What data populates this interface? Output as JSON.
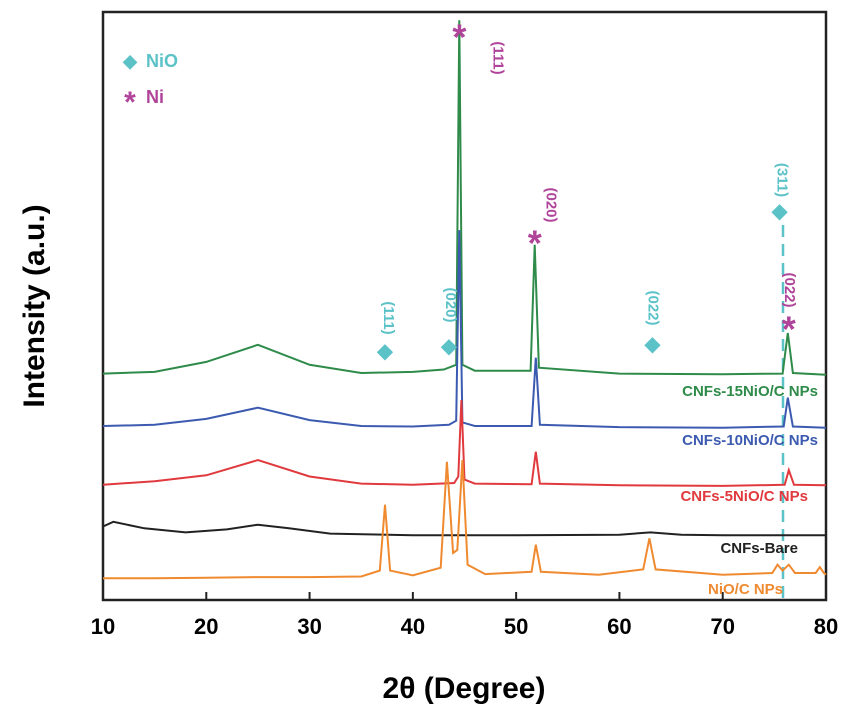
{
  "chart_data": {
    "type": "line",
    "xlabel": "2θ (Degree)",
    "ylabel": "Intensity (a.u.)",
    "xlim": [
      10,
      80
    ],
    "xticks": [
      10,
      20,
      30,
      40,
      50,
      60,
      70,
      80
    ],
    "ylim": [
      0,
      100
    ],
    "grid": false,
    "series": [
      {
        "name": "CNFs-15NiO/C NPs",
        "color": "#2e8b4a",
        "x": [
          10,
          15,
          20,
          25,
          30,
          35,
          40,
          43,
          44.2,
          44.5,
          44.8,
          46,
          51.4,
          51.8,
          52.2,
          60,
          70,
          75.8,
          76.3,
          76.8,
          80
        ],
        "values": [
          38.5,
          38.8,
          40.5,
          43.4,
          40,
          38.6,
          38.8,
          39.2,
          40,
          98.6,
          40,
          39,
          39,
          60.4,
          39.5,
          38.5,
          38.4,
          38.5,
          45.4,
          38.6,
          38.3
        ]
      },
      {
        "name": "CNFs-10NiO/C NPs",
        "color": "#3c5bb0",
        "x": [
          10,
          15,
          20,
          25,
          30,
          35,
          40,
          43.5,
          44.2,
          44.5,
          44.8,
          46,
          51.5,
          51.9,
          52.3,
          60,
          70,
          75.9,
          76.3,
          76.8,
          80
        ],
        "values": [
          29.6,
          29.8,
          30.8,
          32.7,
          30.6,
          29.6,
          29.5,
          29.8,
          30.5,
          62.9,
          30.2,
          29.6,
          29.6,
          41.2,
          29.8,
          29.4,
          29.3,
          29.5,
          34.4,
          29.5,
          29.3
        ]
      },
      {
        "name": "CNFs-5NiO/C NPs",
        "color": "#e03a3e",
        "x": [
          10,
          15,
          20,
          25,
          30,
          35,
          40,
          44,
          44.4,
          44.7,
          45,
          46,
          51.5,
          51.9,
          52.3,
          60,
          70,
          76,
          76.4,
          76.9,
          80
        ],
        "values": [
          19.6,
          20.2,
          21.2,
          23.8,
          21,
          19.8,
          19.6,
          19.9,
          21,
          34,
          20.5,
          19.8,
          19.7,
          25.2,
          19.8,
          19.5,
          19.4,
          19.6,
          22.1,
          19.6,
          19.5
        ]
      },
      {
        "name": "CNFs-Bare",
        "color": "#222222",
        "x": [
          10,
          11,
          14,
          18,
          22,
          25,
          28,
          32,
          40,
          50,
          60,
          63,
          66,
          70,
          80
        ],
        "values": [
          12.5,
          13.3,
          12.2,
          11.5,
          12,
          12.8,
          12.2,
          11.3,
          11,
          11,
          11.1,
          11.5,
          11.1,
          11,
          11
        ]
      },
      {
        "name": "NiO/C NPs",
        "color": "#f08a30",
        "x": [
          10,
          15,
          20,
          25,
          30,
          35,
          36.8,
          37.3,
          37.8,
          40,
          42.7,
          43.3,
          43.9,
          44.3,
          44.8,
          45.3,
          47,
          51.5,
          51.9,
          52.4,
          58,
          62.3,
          62.9,
          63.5,
          70,
          74.8,
          75.3,
          75.8,
          76.4,
          77,
          79,
          79.4,
          79.8,
          80
        ],
        "values": [
          3.7,
          3.7,
          3.8,
          3.9,
          3.9,
          4,
          5,
          16.2,
          5,
          4.2,
          5.5,
          23.5,
          8,
          8.5,
          23.8,
          6,
          4.4,
          4.8,
          9.4,
          4.8,
          4.3,
          5.2,
          10.5,
          5.2,
          4.3,
          4.6,
          6,
          5,
          6,
          4.6,
          4.6,
          5.6,
          4.6,
          4.3
        ]
      }
    ],
    "legend": [
      {
        "symbol": "◆",
        "label": "NiO",
        "color": "#5bc2c8"
      },
      {
        "symbol": "*",
        "label": "Ni",
        "color": "#b0449a"
      }
    ],
    "annotations": [
      {
        "symbol": "◆",
        "label": "(111)",
        "color": "#5bc2c8"
      },
      {
        "symbol": "◆",
        "label": "(020)",
        "color": "#5bc2c8"
      },
      {
        "symbol": "*",
        "label": "(111)",
        "color": "#b0449a"
      },
      {
        "symbol": "*",
        "label": "(020)",
        "color": "#b0449a"
      },
      {
        "symbol": "◆",
        "label": "(022)",
        "color": "#5bc2c8"
      },
      {
        "symbol": "◆",
        "label": "(311)",
        "color": "#5bc2c8"
      },
      {
        "symbol": "*",
        "label": "(022)",
        "color": "#b0449a"
      }
    ]
  }
}
